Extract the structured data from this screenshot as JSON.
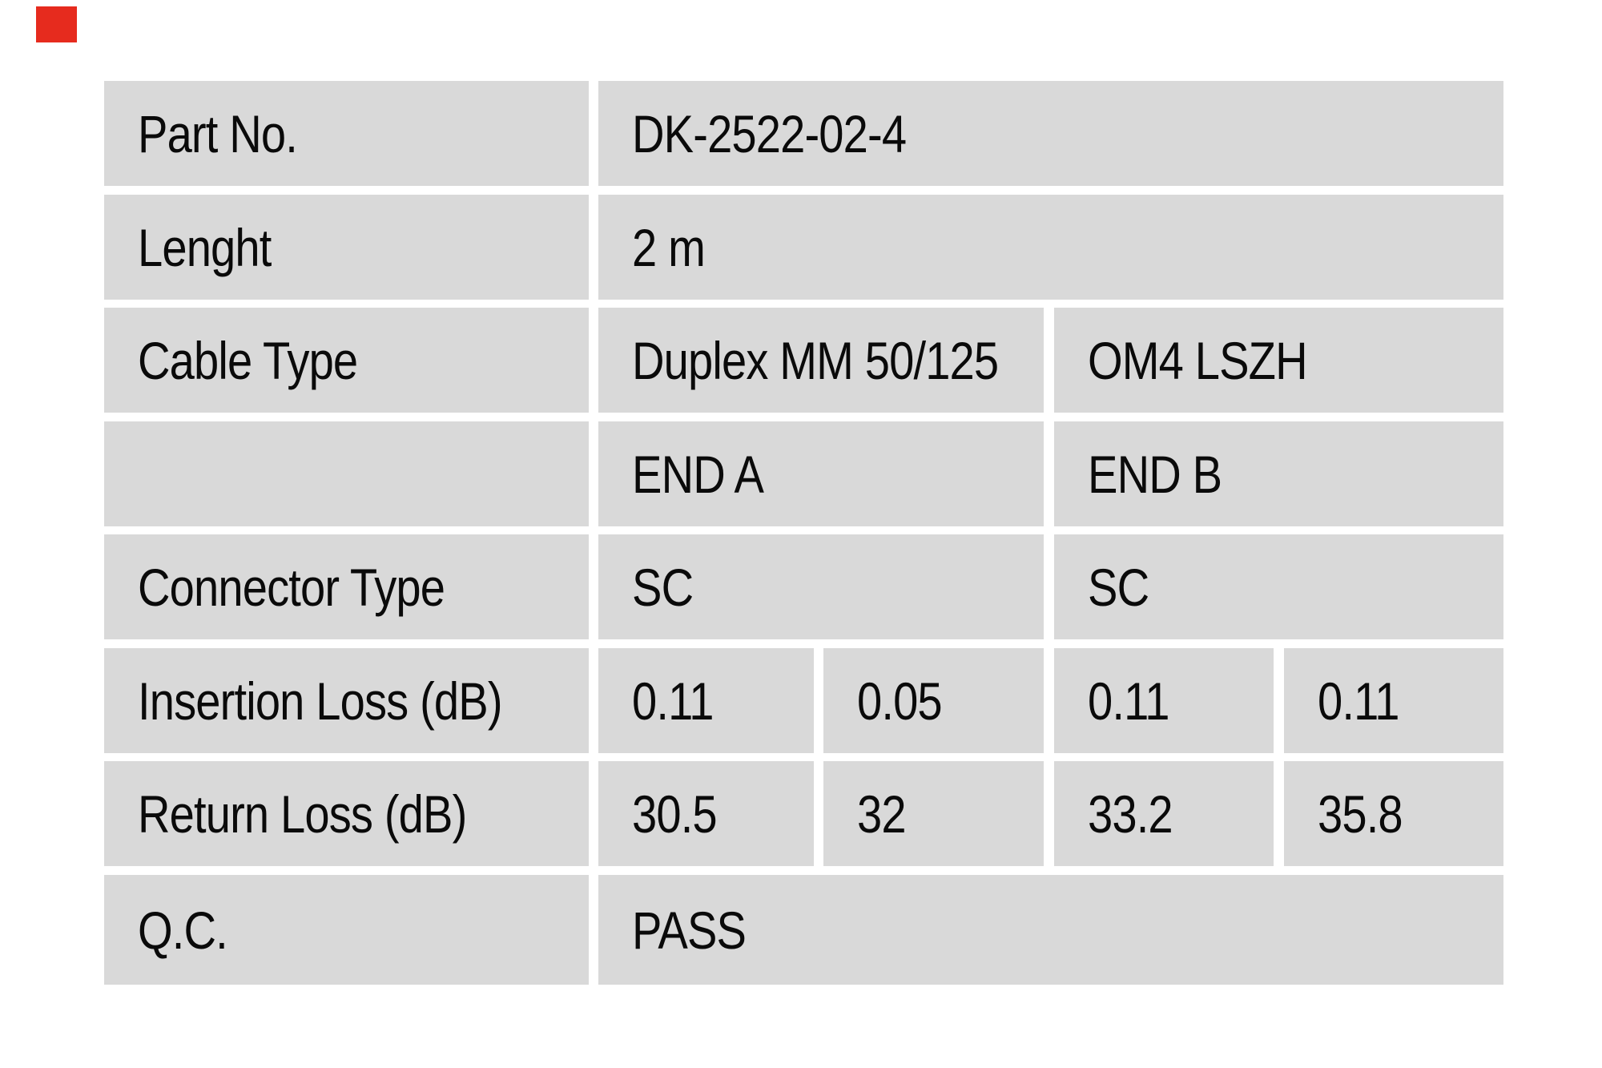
{
  "colors": {
    "logo_red": "#e62b1e",
    "cell_background": "#d9d9d9",
    "page_background": "#ffffff",
    "text": "#0a0a0a"
  },
  "logo": {
    "shape": "red-square"
  },
  "table": {
    "rows": [
      {
        "label": "Part No.",
        "value": "DK-2522-02-4"
      },
      {
        "label": "Lenght",
        "value": "2 m"
      },
      {
        "label": "Cable Type",
        "end_a": "Duplex MM 50/125",
        "end_b": "OM4 LSZH"
      },
      {
        "label": "",
        "end_a": "END A",
        "end_b": "END B"
      },
      {
        "label": "Connector Type",
        "end_a": "SC",
        "end_b": "SC"
      },
      {
        "label": "Insertion Loss (dB)",
        "end_a_1": "0.11",
        "end_a_2": "0.05",
        "end_b_1": "0.11",
        "end_b_2": "0.11"
      },
      {
        "label": "Return Loss (dB)",
        "end_a_1": "30.5",
        "end_a_2": "32",
        "end_b_1": "33.2",
        "end_b_2": "35.8"
      },
      {
        "label": "Q.C.",
        "value": "PASS"
      }
    ]
  }
}
